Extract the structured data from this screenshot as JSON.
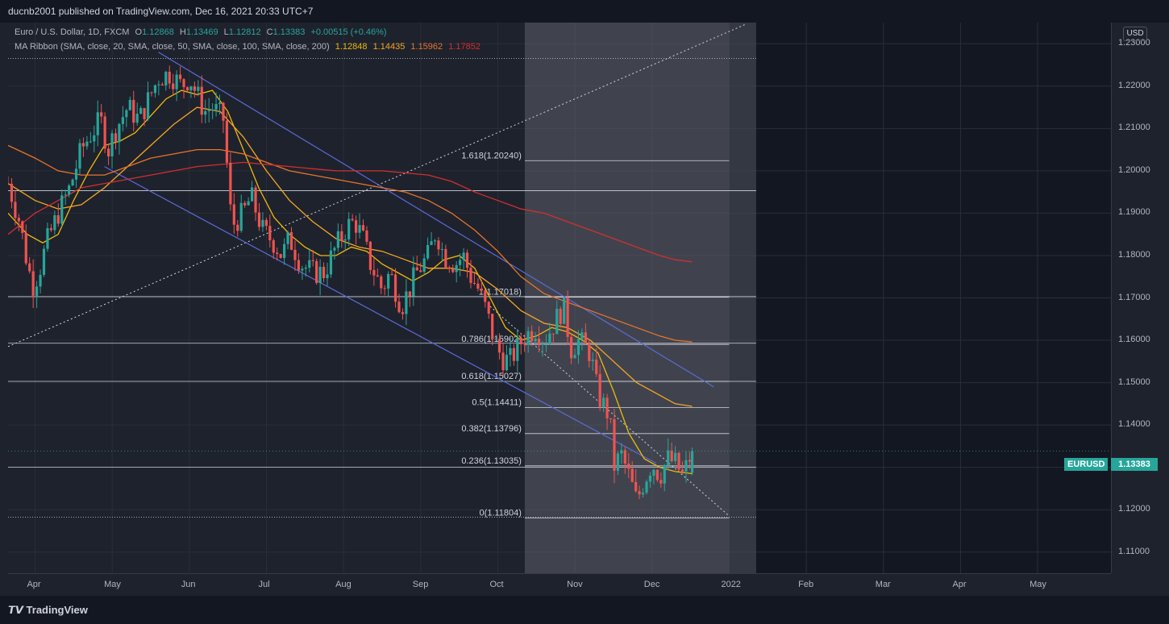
{
  "header": {
    "published": "ducnb2001 published on TradingView.com, Dec 16, 2021 20:33 UTC+7"
  },
  "legend": {
    "symbol": "Euro / U.S. Dollar, 1D, FXCM",
    "o_label": "O",
    "o_value": "1.12868",
    "h_label": "H",
    "h_value": "1.13469",
    "l_label": "L",
    "l_value": "1.12812",
    "c_label": "C",
    "c_value": "1.13383",
    "change": "+0.00515 (+0.46%)",
    "ma_label": "MA Ribbon (SMA, close, 20, SMA, close, 50, SMA, close, 100, SMA, close, 200)",
    "ma20": "1.12848",
    "ma50": "1.14435",
    "ma100": "1.15962",
    "ma200": "1.17852"
  },
  "axis": {
    "currency_button": "USD",
    "symbol_tag": "EURUSD",
    "last_price": "1.13383"
  },
  "colors": {
    "up": "#26a69a",
    "down": "#ef5350",
    "ma20": "#f0b90b",
    "ma50": "#f5a623",
    "ma100": "#e8742a",
    "ma200": "#d32f2f",
    "channel": "#5b6bd6",
    "fib_bg": "#9598a1"
  },
  "footer": {
    "brand": "TradingView"
  },
  "chart_data": {
    "type": "line",
    "title": "Euro / U.S. Dollar, 1D, FXCM",
    "ylim": [
      1.105,
      1.235
    ],
    "y_ticks": [
      "1.23000",
      "1.22000",
      "1.21000",
      "1.20000",
      "1.19000",
      "1.18000",
      "1.17000",
      "1.16000",
      "1.15000",
      "1.14000",
      "1.13000",
      "1.12000",
      "1.11000"
    ],
    "x_ticks": [
      "Apr",
      "May",
      "Jun",
      "Jul",
      "Aug",
      "Sep",
      "Oct",
      "Nov",
      "Dec",
      "2022",
      "Feb",
      "Mar",
      "Apr",
      "May"
    ],
    "x_ticks_month_index": [
      1,
      2,
      3,
      4,
      5,
      6,
      7,
      8,
      9,
      10,
      11,
      12,
      13,
      14
    ],
    "x_range_months": [
      0.65,
      14.95
    ],
    "last_month_index": 9.52,
    "price_path": [
      [
        0.65,
        1.197
      ],
      [
        0.8,
        1.188
      ],
      [
        0.9,
        1.178
      ],
      [
        0.97,
        1.173
      ],
      [
        1.05,
        1.176
      ],
      [
        1.15,
        1.183
      ],
      [
        1.3,
        1.19
      ],
      [
        1.45,
        1.196
      ],
      [
        1.6,
        1.205
      ],
      [
        1.7,
        1.208
      ],
      [
        1.85,
        1.212
      ],
      [
        1.95,
        1.205
      ],
      [
        2.05,
        1.21
      ],
      [
        2.2,
        1.215
      ],
      [
        2.35,
        1.212
      ],
      [
        2.5,
        1.218
      ],
      [
        2.6,
        1.222
      ],
      [
        2.75,
        1.223
      ],
      [
        2.9,
        1.22
      ],
      [
        3.0,
        1.222
      ],
      [
        3.1,
        1.218
      ],
      [
        3.2,
        1.214
      ],
      [
        3.3,
        1.215
      ],
      [
        3.45,
        1.212
      ],
      [
        3.5,
        1.198
      ],
      [
        3.55,
        1.187
      ],
      [
        3.7,
        1.19
      ],
      [
        3.8,
        1.194
      ],
      [
        3.95,
        1.186
      ],
      [
        4.1,
        1.183
      ],
      [
        4.2,
        1.18
      ],
      [
        4.3,
        1.184
      ],
      [
        4.45,
        1.178
      ],
      [
        4.6,
        1.176
      ],
      [
        4.75,
        1.176
      ],
      [
        4.9,
        1.182
      ],
      [
        5.05,
        1.187
      ],
      [
        5.15,
        1.188
      ],
      [
        5.25,
        1.184
      ],
      [
        5.35,
        1.178
      ],
      [
        5.5,
        1.172
      ],
      [
        5.6,
        1.176
      ],
      [
        5.75,
        1.168
      ],
      [
        5.85,
        1.172
      ],
      [
        5.95,
        1.176
      ],
      [
        6.1,
        1.18
      ],
      [
        6.2,
        1.186
      ],
      [
        6.3,
        1.18
      ],
      [
        6.45,
        1.178
      ],
      [
        6.55,
        1.18
      ],
      [
        6.65,
        1.175
      ],
      [
        6.75,
        1.172
      ],
      [
        6.85,
        1.167
      ],
      [
        6.95,
        1.16
      ],
      [
        7.05,
        1.156
      ],
      [
        7.15,
        1.155
      ],
      [
        7.25,
        1.158
      ],
      [
        7.35,
        1.161
      ],
      [
        7.5,
        1.163
      ],
      [
        7.6,
        1.16
      ],
      [
        7.7,
        1.163
      ],
      [
        7.85,
        1.168
      ],
      [
        7.95,
        1.158
      ],
      [
        8.05,
        1.16
      ],
      [
        8.2,
        1.157
      ],
      [
        8.3,
        1.147
      ],
      [
        8.45,
        1.142
      ],
      [
        8.5,
        1.13
      ],
      [
        8.6,
        1.133
      ],
      [
        8.7,
        1.128
      ],
      [
        8.8,
        1.122
      ],
      [
        8.9,
        1.127
      ],
      [
        9.0,
        1.131
      ],
      [
        9.1,
        1.128
      ],
      [
        9.2,
        1.132
      ],
      [
        9.3,
        1.131
      ],
      [
        9.4,
        1.128
      ],
      [
        9.52,
        1.1338
      ]
    ],
    "series": [
      {
        "name": "MA 20",
        "values": [
          [
            0.65,
            1.19
          ],
          [
            0.9,
            1.185
          ],
          [
            1.1,
            1.183
          ],
          [
            1.3,
            1.185
          ],
          [
            1.5,
            1.193
          ],
          [
            1.7,
            1.2
          ],
          [
            1.9,
            1.206
          ],
          [
            2.1,
            1.207
          ],
          [
            2.3,
            1.209
          ],
          [
            2.5,
            1.213
          ],
          [
            2.7,
            1.217
          ],
          [
            2.9,
            1.219
          ],
          [
            3.1,
            1.218
          ],
          [
            3.3,
            1.219
          ],
          [
            3.5,
            1.214
          ],
          [
            3.7,
            1.205
          ],
          [
            3.9,
            1.196
          ],
          [
            4.1,
            1.189
          ],
          [
            4.3,
            1.185
          ],
          [
            4.5,
            1.182
          ],
          [
            4.7,
            1.18
          ],
          [
            4.9,
            1.18
          ],
          [
            5.1,
            1.182
          ],
          [
            5.3,
            1.181
          ],
          [
            5.5,
            1.178
          ],
          [
            5.7,
            1.176
          ],
          [
            5.9,
            1.174
          ],
          [
            6.1,
            1.176
          ],
          [
            6.3,
            1.179
          ],
          [
            6.5,
            1.18
          ],
          [
            6.7,
            1.177
          ],
          [
            6.9,
            1.17
          ],
          [
            7.1,
            1.163
          ],
          [
            7.3,
            1.16
          ],
          [
            7.5,
            1.161
          ],
          [
            7.7,
            1.163
          ],
          [
            7.9,
            1.162
          ],
          [
            8.1,
            1.16
          ],
          [
            8.3,
            1.157
          ],
          [
            8.5,
            1.148
          ],
          [
            8.7,
            1.138
          ],
          [
            8.9,
            1.132
          ],
          [
            9.1,
            1.13
          ],
          [
            9.3,
            1.129
          ],
          [
            9.52,
            1.1285
          ]
        ]
      },
      {
        "name": "MA 50",
        "values": [
          [
            0.65,
            1.197
          ],
          [
            1.0,
            1.193
          ],
          [
            1.3,
            1.191
          ],
          [
            1.6,
            1.192
          ],
          [
            1.9,
            1.196
          ],
          [
            2.2,
            1.201
          ],
          [
            2.5,
            1.206
          ],
          [
            2.8,
            1.211
          ],
          [
            3.1,
            1.215
          ],
          [
            3.4,
            1.214
          ],
          [
            3.7,
            1.208
          ],
          [
            4.0,
            1.2
          ],
          [
            4.3,
            1.193
          ],
          [
            4.6,
            1.188
          ],
          [
            4.9,
            1.184
          ],
          [
            5.2,
            1.182
          ],
          [
            5.5,
            1.181
          ],
          [
            5.8,
            1.179
          ],
          [
            6.1,
            1.177
          ],
          [
            6.4,
            1.177
          ],
          [
            6.7,
            1.176
          ],
          [
            7.0,
            1.172
          ],
          [
            7.3,
            1.167
          ],
          [
            7.6,
            1.164
          ],
          [
            7.9,
            1.163
          ],
          [
            8.2,
            1.16
          ],
          [
            8.5,
            1.155
          ],
          [
            8.8,
            1.15
          ],
          [
            9.1,
            1.147
          ],
          [
            9.3,
            1.145
          ],
          [
            9.52,
            1.1444
          ]
        ]
      },
      {
        "name": "MA 100",
        "values": [
          [
            0.65,
            1.206
          ],
          [
            1.0,
            1.203
          ],
          [
            1.3,
            1.2
          ],
          [
            1.6,
            1.199
          ],
          [
            1.9,
            1.199
          ],
          [
            2.2,
            1.201
          ],
          [
            2.5,
            1.203
          ],
          [
            2.8,
            1.204
          ],
          [
            3.1,
            1.205
          ],
          [
            3.4,
            1.205
          ],
          [
            3.7,
            1.204
          ],
          [
            4.0,
            1.202
          ],
          [
            4.3,
            1.2
          ],
          [
            4.6,
            1.199
          ],
          [
            4.9,
            1.198
          ],
          [
            5.2,
            1.197
          ],
          [
            5.5,
            1.196
          ],
          [
            5.8,
            1.195
          ],
          [
            6.1,
            1.193
          ],
          [
            6.4,
            1.19
          ],
          [
            6.7,
            1.186
          ],
          [
            7.0,
            1.181
          ],
          [
            7.3,
            1.175
          ],
          [
            7.6,
            1.171
          ],
          [
            7.9,
            1.169
          ],
          [
            8.2,
            1.167
          ],
          [
            8.5,
            1.165
          ],
          [
            8.8,
            1.163
          ],
          [
            9.1,
            1.161
          ],
          [
            9.3,
            1.16
          ],
          [
            9.52,
            1.1596
          ]
        ]
      },
      {
        "name": "MA 200",
        "values": [
          [
            0.65,
            1.185
          ],
          [
            1.0,
            1.19
          ],
          [
            1.3,
            1.193
          ],
          [
            1.6,
            1.196
          ],
          [
            1.9,
            1.197
          ],
          [
            2.2,
            1.198
          ],
          [
            2.5,
            1.199
          ],
          [
            2.8,
            1.2
          ],
          [
            3.1,
            1.201
          ],
          [
            3.4,
            1.2015
          ],
          [
            3.7,
            1.202
          ],
          [
            4.0,
            1.2015
          ],
          [
            4.3,
            1.201
          ],
          [
            4.6,
            1.2005
          ],
          [
            4.9,
            1.2
          ],
          [
            5.2,
            1.2
          ],
          [
            5.5,
            1.2
          ],
          [
            5.8,
            1.1995
          ],
          [
            6.1,
            1.199
          ],
          [
            6.4,
            1.1975
          ],
          [
            6.7,
            1.195
          ],
          [
            7.0,
            1.193
          ],
          [
            7.3,
            1.191
          ],
          [
            7.6,
            1.19
          ],
          [
            7.9,
            1.188
          ],
          [
            8.2,
            1.186
          ],
          [
            8.5,
            1.184
          ],
          [
            8.8,
            1.182
          ],
          [
            9.1,
            1.18
          ],
          [
            9.3,
            1.179
          ],
          [
            9.52,
            1.1785
          ]
        ]
      }
    ],
    "channel_upper": [
      [
        2.6,
        1.228
      ],
      [
        9.8,
        1.149
      ]
    ],
    "channel_lower": [
      [
        1.9,
        1.201
      ],
      [
        9.05,
        1.131
      ]
    ],
    "diagonal_dotted": [
      [
        0.65,
        1.1585
      ],
      [
        10.2,
        1.2345
      ]
    ],
    "diagonal_dotted_2": [
      [
        6.9,
        1.168
      ],
      [
        10.0,
        1.1185
      ]
    ],
    "horizontal_levels": [
      1.2265,
      1.1953,
      1.1703,
      1.1593,
      1.1503,
      1.13,
      1.1182
    ],
    "fib": {
      "start": 7.35,
      "end": 10.0,
      "box_end": 10.35,
      "levels": [
        {
          "label": "1.618(1.20240)",
          "value": 1.2024
        },
        {
          "label": "1(1.17018)",
          "value": 1.17018
        },
        {
          "label": "0.786(1.15902)",
          "value": 1.15902
        },
        {
          "label": "0.618(1.15027)",
          "value": 1.15027
        },
        {
          "label": "0.5(1.14411)",
          "value": 1.14411
        },
        {
          "label": "0.382(1.13796)",
          "value": 1.13796
        },
        {
          "label": "0.236(1.13035)",
          "value": 1.13035
        },
        {
          "label": "0(1.11804)",
          "value": 1.11804
        }
      ]
    }
  }
}
